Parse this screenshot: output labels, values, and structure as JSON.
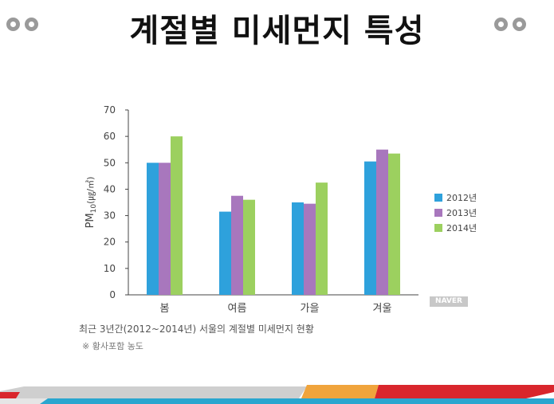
{
  "page": {
    "title": "계절별 미세먼지 특성",
    "caption": "최근 3년간(2012~2014년) 서울의 계절별 미세먼지 현황",
    "note": "※ 황사포함 농도",
    "watermark": "NAVER"
  },
  "colors": {
    "series_2012": "#2ea1dc",
    "series_2013": "#a877bd",
    "series_2014": "#9cd05f",
    "footer_red": "#d9262c",
    "footer_orange": "#f0a43c",
    "footer_blue": "#2aa6cf",
    "footer_gray": "#c9c9c9"
  },
  "chart_data": {
    "type": "bar",
    "categories": [
      "봄",
      "여름",
      "가을",
      "겨울"
    ],
    "series": [
      {
        "name": "2012년",
        "values": [
          50,
          31.5,
          35,
          50.5
        ]
      },
      {
        "name": "2013년",
        "values": [
          50,
          37.5,
          34.5,
          55
        ]
      },
      {
        "name": "2014년",
        "values": [
          60,
          36,
          42.5,
          53.5
        ]
      }
    ],
    "ylabel": "PM10(㎍/㎥)",
    "ylabel_main": "PM",
    "ylabel_sub": "10",
    "ylabel_unit": "(㎍/㎥)",
    "ylim": [
      0,
      70
    ],
    "yticks": [
      0,
      10,
      20,
      30,
      40,
      50,
      60,
      70
    ],
    "legend": "right",
    "grid": false
  }
}
